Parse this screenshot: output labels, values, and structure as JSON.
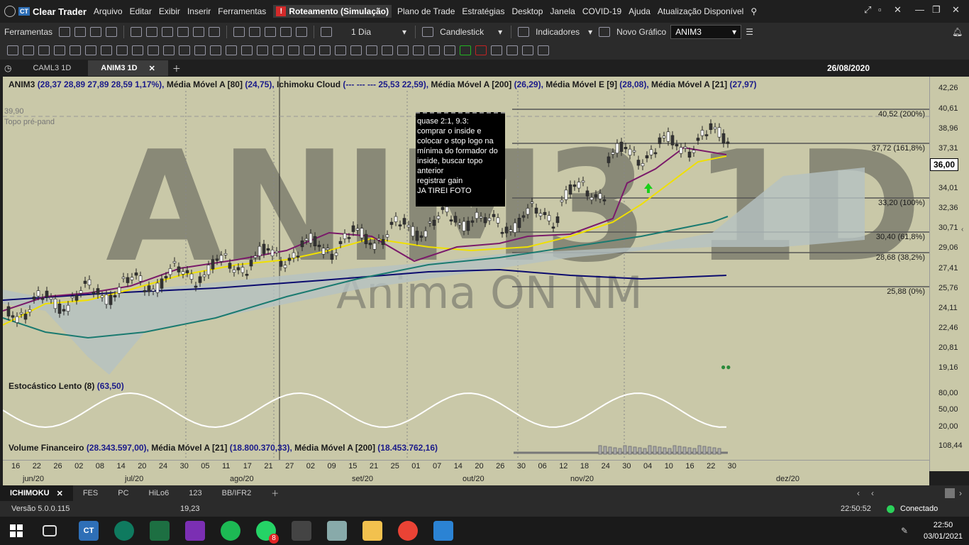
{
  "menubar": {
    "app_badge": "CT",
    "app_name": "Clear Trader",
    "items": [
      "Arquivo",
      "Editar",
      "Exibir",
      "Inserir",
      "Ferramentas"
    ],
    "routing": "Roteamento (Simulação)",
    "items2": [
      "Plano de Trade",
      "Estratégias",
      "Desktop",
      "Janela",
      "COVID-19",
      "Ajuda",
      "Atualização Disponível"
    ]
  },
  "toolbar1": {
    "label": "Ferramentas",
    "period": "1 Dia",
    "chart_type": "Candlestick",
    "indicators": "Indicadores",
    "new_chart": "Novo Gráfico",
    "symbol": "ANIM3"
  },
  "tabs": [
    {
      "label": "CAML3 1D"
    },
    {
      "label": "ANIM3 1D"
    }
  ],
  "tab_date": "26/08/2020",
  "chart": {
    "header": {
      "sym": "ANIM3",
      "ohlc": "(28,37  28,89  27,89  28,59  1,17%),",
      "ma80": "Média Móvel A [80]",
      "ma80v": "(24,75),",
      "ichi": "Ichimoku Cloud",
      "ichiv": "(---  ---  ---  25,53  22,59),",
      "ma200": "Média Móvel A [200]",
      "ma200v": "(26,29),",
      "mae9": "Média Móvel E [9]",
      "mae9v": "(28,08),",
      "ma21": "Média Móvel A [21]",
      "ma21v": "(27,97)"
    },
    "topline_value": "39,90",
    "topline_label": "Topo pré-pand",
    "watermark": "ANIM3 1D",
    "watermark_sub": "Anima ON NM",
    "note": [
      "quase 2:1, 9.3:",
      "comprar o inside e",
      "colocar o stop logo na",
      "mínima do formador do",
      "inside, buscar topo",
      "anterior",
      "registrar gain",
      "JA TIREI FOTO"
    ],
    "fib": [
      {
        "label": "40,52 (200%)"
      },
      {
        "label": "37,72 (161,8%)"
      },
      {
        "label": "33,20 (100%)"
      },
      {
        "label": "30,40 (61,8%)"
      },
      {
        "label": "28,68 (38,2%)"
      },
      {
        "label": "25,88 (0%)"
      }
    ],
    "stoch_label": "Estocástico Lento (8)",
    "stoch_value": "(63,50)",
    "vol_label": "Volume Financeiro",
    "vol_value": "(28.343.597,00),",
    "vol_ma21": "Média Móvel A [21]",
    "vol_ma21v": "(18.800.370,33),",
    "vol_ma200": "Média Móvel A [200]",
    "vol_ma200v": "(18.453.762,16)"
  },
  "yaxis": [
    "42,26",
    "40,61",
    "38,96",
    "37,31",
    "34,01",
    "32,36",
    "30,71",
    "29,06",
    "27,41",
    "25,76",
    "24,11",
    "22,46",
    "20,81",
    "19,16",
    "80,00",
    "50,00",
    "20,00",
    "108,44"
  ],
  "price_tag": "36,00",
  "xaxis": {
    "days": [
      "16",
      "22",
      "26",
      "02",
      "08",
      "14",
      "20",
      "24",
      "30",
      "05",
      "11",
      "17",
      "21",
      "27",
      "02",
      "09",
      "15",
      "21",
      "25",
      "01",
      "07",
      "14",
      "20",
      "26",
      "30",
      "06",
      "12",
      "18",
      "24",
      "30",
      "04",
      "10",
      "16",
      "22",
      "30"
    ],
    "months": [
      "jun/20",
      "jul/20",
      "ago/20",
      "set/20",
      "out/20",
      "nov/20",
      "dez/20"
    ]
  },
  "study_tabs": [
    "ICHIMOKU",
    "FES",
    "PC",
    "HiLo6",
    "123",
    "BB/IFR2"
  ],
  "status": {
    "version": "Versão 5.0.0.115",
    "cursor": "19,23",
    "time": "22:50:52",
    "conn": "Conectado"
  },
  "taskbar": {
    "time": "22:50",
    "date": "03/01/2021",
    "badge": "8"
  }
}
